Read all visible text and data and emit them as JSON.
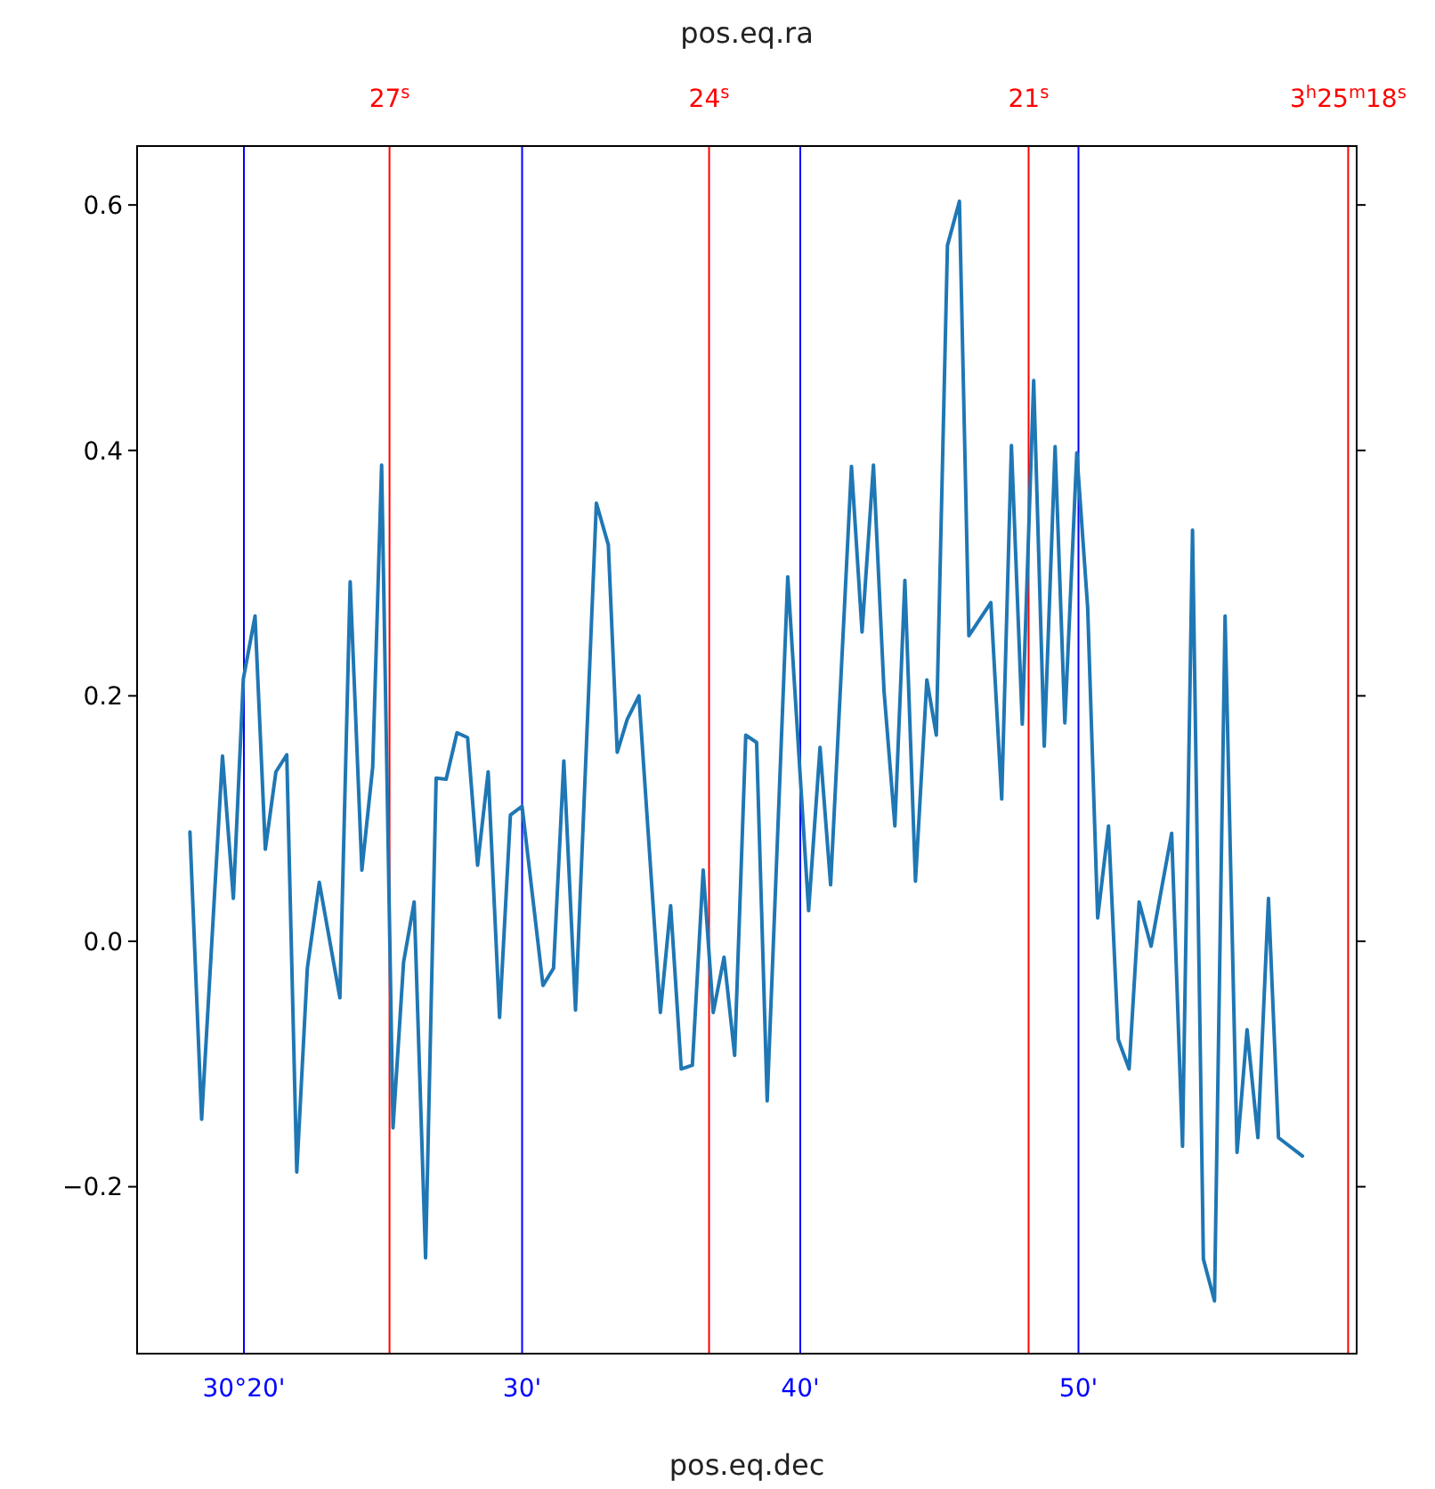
{
  "chart_data": {
    "type": "line",
    "xlabel": "pos.eq.dec",
    "x2label": "pos.eq.ra",
    "x": [
      18.06,
      18.48,
      19.23,
      19.62,
      19.98,
      20.4,
      20.77,
      21.15,
      21.54,
      21.9,
      22.28,
      22.71,
      23.45,
      23.82,
      24.24,
      24.63,
      24.95,
      25.36,
      25.74,
      26.12,
      26.53,
      26.91,
      27.27,
      27.66,
      28.04,
      28.4,
      28.78,
      29.19,
      29.58,
      30.0,
      30.75,
      31.13,
      31.5,
      31.92,
      32.67,
      33.1,
      33.42,
      33.78,
      34.2,
      34.97,
      35.34,
      35.72,
      36.12,
      36.51,
      36.87,
      37.26,
      37.64,
      38.04,
      38.43,
      38.81,
      39.55,
      40.3,
      40.71,
      41.09,
      41.84,
      42.22,
      42.63,
      43.01,
      43.4,
      43.76,
      44.14,
      44.55,
      44.89,
      45.29,
      45.72,
      46.06,
      46.85,
      47.24,
      47.59,
      47.98,
      48.39,
      48.77,
      49.16,
      49.51,
      49.94,
      50.33,
      50.69,
      51.08,
      51.43,
      51.82,
      52.18,
      52.61,
      53.35,
      53.74,
      54.1,
      54.49,
      54.89,
      55.27,
      55.7,
      56.06,
      56.45,
      56.83,
      57.19,
      58.05
    ],
    "series": [
      {
        "color": "#1f77b4",
        "values": [
          0.089,
          -0.145,
          0.151,
          0.035,
          0.214,
          0.265,
          0.075,
          0.138,
          0.152,
          -0.188,
          -0.022,
          0.048,
          -0.046,
          0.293,
          0.058,
          0.142,
          0.388,
          -0.152,
          -0.017,
          0.032,
          -0.258,
          0.133,
          0.132,
          0.17,
          0.166,
          0.062,
          0.138,
          -0.062,
          0.103,
          0.11,
          -0.036,
          -0.022,
          0.147,
          -0.056,
          0.357,
          0.323,
          0.154,
          0.181,
          0.2,
          -0.058,
          0.029,
          -0.104,
          -0.101,
          0.058,
          -0.058,
          -0.013,
          -0.093,
          0.168,
          0.162,
          -0.13,
          0.297,
          0.025,
          0.158,
          0.046,
          0.387,
          0.252,
          0.388,
          0.204,
          0.094,
          0.294,
          0.049,
          0.213,
          0.168,
          0.567,
          0.603,
          0.249,
          0.276,
          0.116,
          0.404,
          0.177,
          0.457,
          0.159,
          0.403,
          0.178,
          0.398,
          0.272,
          0.019,
          0.094,
          -0.08,
          -0.104,
          0.032,
          -0.004,
          0.088,
          -0.167,
          0.335,
          -0.259,
          -0.293,
          0.265,
          -0.172,
          -0.072,
          -0.16,
          0.035,
          -0.16,
          -0.175
        ]
      }
    ],
    "xlim": [
      16.16,
      60.0
    ],
    "xticks": [
      {
        "value": 20,
        "label": "30°20'"
      },
      {
        "value": 30,
        "label": "30'"
      },
      {
        "value": 40,
        "label": "40'"
      },
      {
        "value": 50,
        "label": "50'"
      }
    ],
    "x2lim": [
      29.37,
      17.92
    ],
    "x2ticks": [
      {
        "value": 27,
        "label": "27$^{s}$"
      },
      {
        "value": 24,
        "label": "24$^{s}$"
      },
      {
        "value": 21,
        "label": "21$^{s}$"
      },
      {
        "value": 18,
        "label": "3$^{h}$25$^{m}$18$^{s}$"
      }
    ],
    "ylim": [
      -0.336,
      0.648
    ],
    "yticks": [
      {
        "value": -0.2,
        "label": "−0.2"
      },
      {
        "value": 0,
        "label": "0.0"
      },
      {
        "value": 0.2,
        "label": "0.2"
      },
      {
        "value": 0.4,
        "label": "0.4"
      },
      {
        "value": 0.6,
        "label": "0.6"
      }
    ],
    "grid": "x",
    "marker": "none",
    "line_style": "solid"
  }
}
